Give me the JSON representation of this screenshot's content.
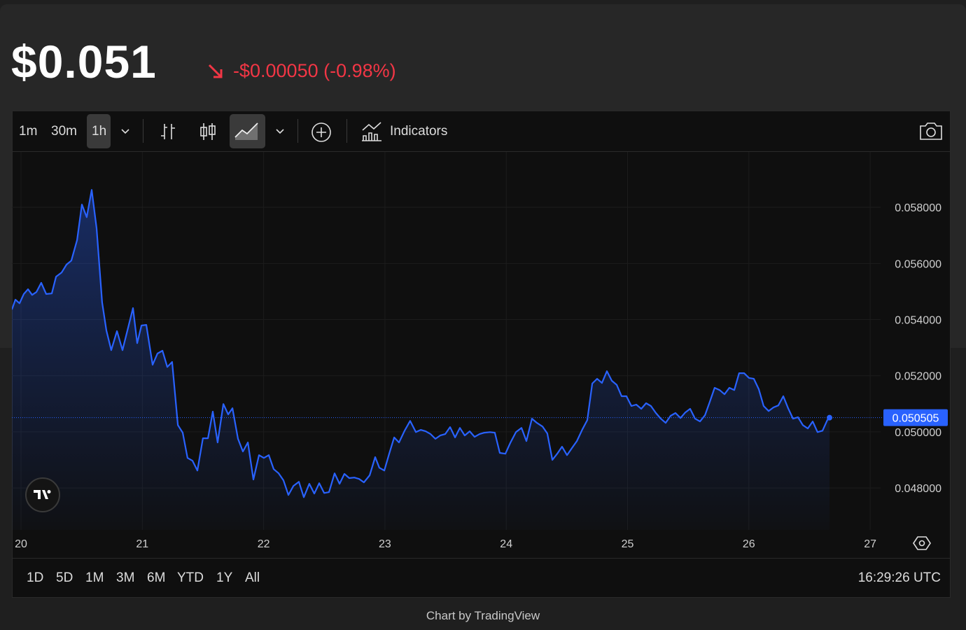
{
  "header": {
    "price": "$0.051",
    "change": "-$0.00050 (-0.98%)"
  },
  "toolbar": {
    "intervals": [
      "1m",
      "30m",
      "1h"
    ],
    "indicators": "Indicators"
  },
  "chart_data": {
    "type": "line",
    "x": [
      19.925,
      19.954,
      19.988,
      20.023,
      20.058,
      20.092,
      20.127,
      20.167,
      20.208,
      20.254,
      20.289,
      20.335,
      20.375,
      20.415,
      20.462,
      20.502,
      20.542,
      20.583,
      20.623,
      20.669,
      20.704,
      20.744,
      20.791,
      20.837,
      20.883,
      20.923,
      20.958,
      20.993,
      21.033,
      21.085,
      21.125,
      21.166,
      21.206,
      21.246,
      21.293,
      21.333,
      21.373,
      21.414,
      21.454,
      21.5,
      21.541,
      21.581,
      21.621,
      21.668,
      21.708,
      21.743,
      21.789,
      21.829,
      21.87,
      21.916,
      21.962,
      22.002,
      22.043,
      22.083,
      22.124,
      22.164,
      22.204,
      22.245,
      22.291,
      22.331,
      22.377,
      22.418,
      22.458,
      22.499,
      22.539,
      22.585,
      22.626,
      22.666,
      22.706,
      22.747,
      22.787,
      22.827,
      22.874,
      22.92,
      22.954,
      22.995,
      23.035,
      23.076,
      23.116,
      23.162,
      23.208,
      23.255,
      23.295,
      23.335,
      23.376,
      23.416,
      23.456,
      23.497,
      23.537,
      23.578,
      23.618,
      23.658,
      23.699,
      23.739,
      23.78,
      23.82,
      23.866,
      23.906,
      23.947,
      23.993,
      24.033,
      24.08,
      24.126,
      24.166,
      24.212,
      24.253,
      24.299,
      24.339,
      24.38,
      24.42,
      24.46,
      24.501,
      24.541,
      24.582,
      24.628,
      24.668,
      24.709,
      24.749,
      24.789,
      24.83,
      24.87,
      24.911,
      24.951,
      24.991,
      25.032,
      25.072,
      25.113,
      25.153,
      25.193,
      25.234,
      25.274,
      25.314,
      25.355,
      25.395,
      25.436,
      25.476,
      25.516,
      25.557,
      25.597,
      25.638,
      25.678,
      25.718,
      25.759,
      25.799,
      25.839,
      25.88,
      25.92,
      25.961,
      26.001,
      26.041,
      26.082,
      26.122,
      26.163,
      26.203,
      26.243,
      26.284,
      26.324,
      26.364,
      26.405,
      26.445,
      26.486,
      26.526,
      26.566,
      26.607,
      26.647,
      26.665
    ],
    "series": [
      {
        "color": "#2962ff",
        "values": [
          0.05436,
          0.05471,
          0.05458,
          0.05491,
          0.05508,
          0.05488,
          0.05498,
          0.05531,
          0.05491,
          0.05493,
          0.05553,
          0.05568,
          0.05596,
          0.0561,
          0.05683,
          0.0581,
          0.05765,
          0.05862,
          0.05725,
          0.05461,
          0.05361,
          0.05291,
          0.05359,
          0.05291,
          0.05371,
          0.05441,
          0.05316,
          0.05379,
          0.05381,
          0.05239,
          0.05279,
          0.05289,
          0.05231,
          0.05249,
          0.05024,
          0.04997,
          0.04907,
          0.04897,
          0.04862,
          0.04977,
          0.04977,
          0.05072,
          0.04962,
          0.05099,
          0.05062,
          0.05084,
          0.04975,
          0.0493,
          0.04962,
          0.0483,
          0.04917,
          0.04907,
          0.04917,
          0.04867,
          0.04852,
          0.04827,
          0.04775,
          0.04807,
          0.04822,
          0.04767,
          0.04815,
          0.0478,
          0.04817,
          0.04782,
          0.04785,
          0.04852,
          0.04815,
          0.0485,
          0.04835,
          0.04837,
          0.04832,
          0.0482,
          0.04845,
          0.0491,
          0.04872,
          0.04862,
          0.04922,
          0.0498,
          0.04962,
          0.05004,
          0.05039,
          0.04999,
          0.05007,
          0.05002,
          0.04992,
          0.04975,
          0.04987,
          0.04992,
          0.05017,
          0.0498,
          0.05014,
          0.04987,
          0.05002,
          0.04982,
          0.04992,
          0.04997,
          0.04999,
          0.04997,
          0.04925,
          0.04922,
          0.0496,
          0.04999,
          0.05014,
          0.04967,
          0.05047,
          0.05032,
          0.05019,
          0.04994,
          0.049,
          0.04922,
          0.04947,
          0.04917,
          0.04942,
          0.04967,
          0.05009,
          0.05042,
          0.05172,
          0.05189,
          0.05174,
          0.05216,
          0.05182,
          0.05167,
          0.05127,
          0.05127,
          0.05092,
          0.05097,
          0.05082,
          0.05102,
          0.05092,
          0.05067,
          0.05047,
          0.05032,
          0.05057,
          0.05067,
          0.05049,
          0.05069,
          0.05082,
          0.05047,
          0.05037,
          0.05059,
          0.05107,
          0.05157,
          0.05149,
          0.05134,
          0.05157,
          0.05149,
          0.05209,
          0.05209,
          0.05192,
          0.05189,
          0.05152,
          0.05092,
          0.05074,
          0.05087,
          0.05094,
          0.05127,
          0.05084,
          0.05047,
          0.05052,
          0.05024,
          0.05012,
          0.05037,
          0.04999,
          0.05004,
          0.05042,
          0.050505
        ]
      }
    ],
    "xlim": [
      19.925,
      27.086
    ],
    "xticks": [
      20,
      21,
      22,
      23,
      24,
      25,
      26,
      27
    ],
    "ylim": [
      0.04663,
      0.05985
    ],
    "yticks": [
      {
        "value": 0.048,
        "label": "0.048000"
      },
      {
        "value": 0.05,
        "label": "0.050000"
      },
      {
        "value": 0.052,
        "label": "0.052000"
      },
      {
        "value": 0.054,
        "label": "0.054000"
      },
      {
        "value": 0.056,
        "label": "0.056000"
      },
      {
        "value": 0.058,
        "label": "0.058000"
      }
    ],
    "grid": true
  },
  "footer": {
    "ranges": [
      "1D",
      "5D",
      "1M",
      "3M",
      "6M",
      "YTD",
      "1Y",
      "All"
    ],
    "time": "16:29:26 UTC",
    "credit": "Chart by TradingView"
  }
}
